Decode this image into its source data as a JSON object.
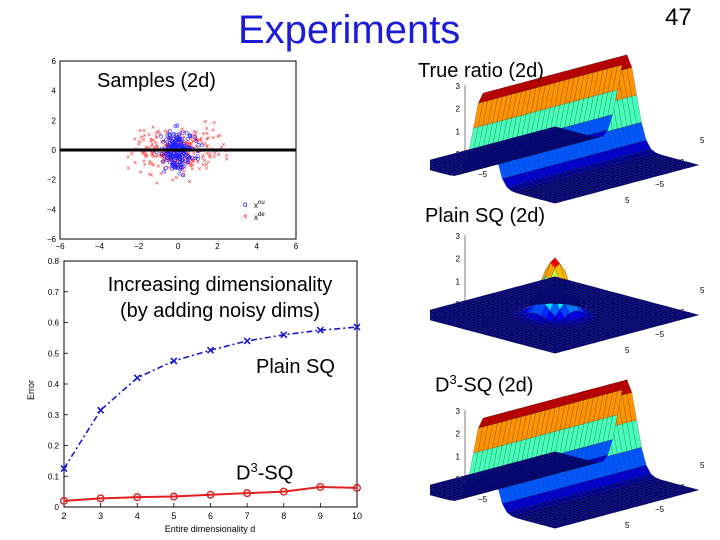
{
  "slide": {
    "title": "Experiments",
    "page_number": "47"
  },
  "labels": {
    "samples": "Samples (2d)",
    "true_ratio": "True ratio (2d)",
    "plain_sq_2d": "Plain SQ (2d)",
    "d3_sq_2d_prefix": "D",
    "d3_sq_2d_sup": "3",
    "d3_sq_2d_suffix": "-SQ (2d)",
    "increasing_line1": "Increasing dimensionality",
    "increasing_line2": "(by adding noisy dims)",
    "plain_sq": "Plain SQ",
    "d3_sq_prefix": "D",
    "d3_sq_sup": "3",
    "d3_sq_suffix": "-SQ"
  },
  "scatter": {
    "x_ticks": [
      "−6",
      "−4",
      "−2",
      "0",
      "2",
      "4",
      "6"
    ],
    "y_ticks": [
      "6",
      "4",
      "2",
      "0",
      "−2",
      "−4",
      "−6"
    ],
    "legend": [
      {
        "marker": "o",
        "text": "x",
        "sup": "nu",
        "color": "#0000ff"
      },
      {
        "marker": "×",
        "text": "x",
        "sup": "de",
        "color": "#ff0000"
      }
    ]
  },
  "surfaces": {
    "z_ticks": [
      "3",
      "2",
      "1",
      "0"
    ],
    "x_ticks": [
      "−5",
      "0",
      "5"
    ],
    "y_ticks": [
      "5",
      "0",
      "−5"
    ]
  },
  "chart_data": {
    "type": "line",
    "xlabel": "Entire dimensionality d",
    "ylabel": "Error",
    "xlim": [
      2,
      10
    ],
    "ylim": [
      0,
      0.8
    ],
    "x": [
      2,
      3,
      4,
      5,
      6,
      7,
      8,
      9,
      10
    ],
    "y_ticks": [
      "0.8",
      "0.7",
      "0.6",
      "0.5",
      "0.4",
      "0.3",
      "0.2",
      "0.1",
      "0"
    ],
    "series": [
      {
        "name": "Plain SQ",
        "color": "#1a1acc",
        "style": "dash-dot",
        "marker": "x",
        "values": [
          0.125,
          0.315,
          0.42,
          0.475,
          0.51,
          0.54,
          0.56,
          0.575,
          0.585
        ]
      },
      {
        "name": "D3-SQ",
        "color": "#e02020",
        "style": "solid",
        "marker": "o",
        "values": [
          0.02,
          0.028,
          0.032,
          0.034,
          0.04,
          0.045,
          0.05,
          0.065,
          0.062
        ]
      }
    ]
  }
}
